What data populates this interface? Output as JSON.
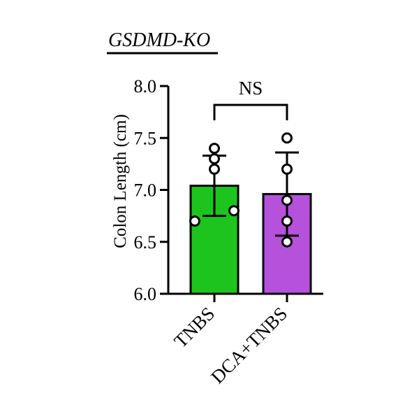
{
  "chart_data": {
    "type": "bar",
    "title": "GSDMD-KO",
    "ylabel": "Colon Length (cm)",
    "xlabel": "",
    "ylim": [
      6.0,
      8.0
    ],
    "yticks": [
      6.0,
      6.5,
      7.0,
      7.5,
      8.0
    ],
    "ytick_labels": [
      "6.0",
      "6.5",
      "7.0",
      "7.5",
      "8.0"
    ],
    "categories": [
      "TNBS",
      "DCA+TNBS"
    ],
    "values": [
      7.04,
      6.96
    ],
    "error_sd": [
      0.29,
      0.4
    ],
    "points": [
      [
        7.4,
        7.3,
        7.2,
        6.8,
        6.7
      ],
      [
        7.5,
        7.2,
        6.9,
        6.7,
        6.5
      ]
    ],
    "significance": {
      "label": "NS",
      "between": [
        "TNBS",
        "DCA+TNBS"
      ]
    },
    "grid": false,
    "colors": {
      "bars": [
        "#1ec41e",
        "#b651dc"
      ],
      "axis": "#000000",
      "points_fill": "#ffffff",
      "points_stroke": "#000000"
    }
  }
}
